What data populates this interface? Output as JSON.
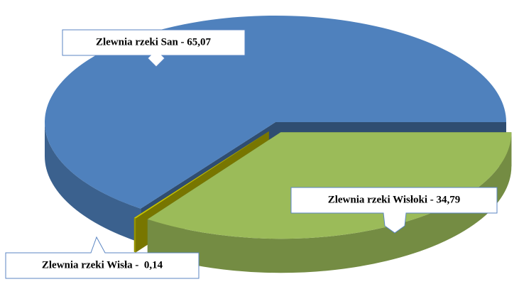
{
  "chart_data": {
    "type": "pie3d",
    "values": [
      65.07,
      0.14,
      34.79
    ],
    "value_labels": [
      "Zlewnia rzeki San - 65,07",
      "Zlewnia rzeki Wisła -  0,14",
      "Zlewnia rzeki Wisłoki - 34,79"
    ],
    "colors": [
      "#4f81bd",
      "#c8c400",
      "#9bbb59"
    ]
  }
}
